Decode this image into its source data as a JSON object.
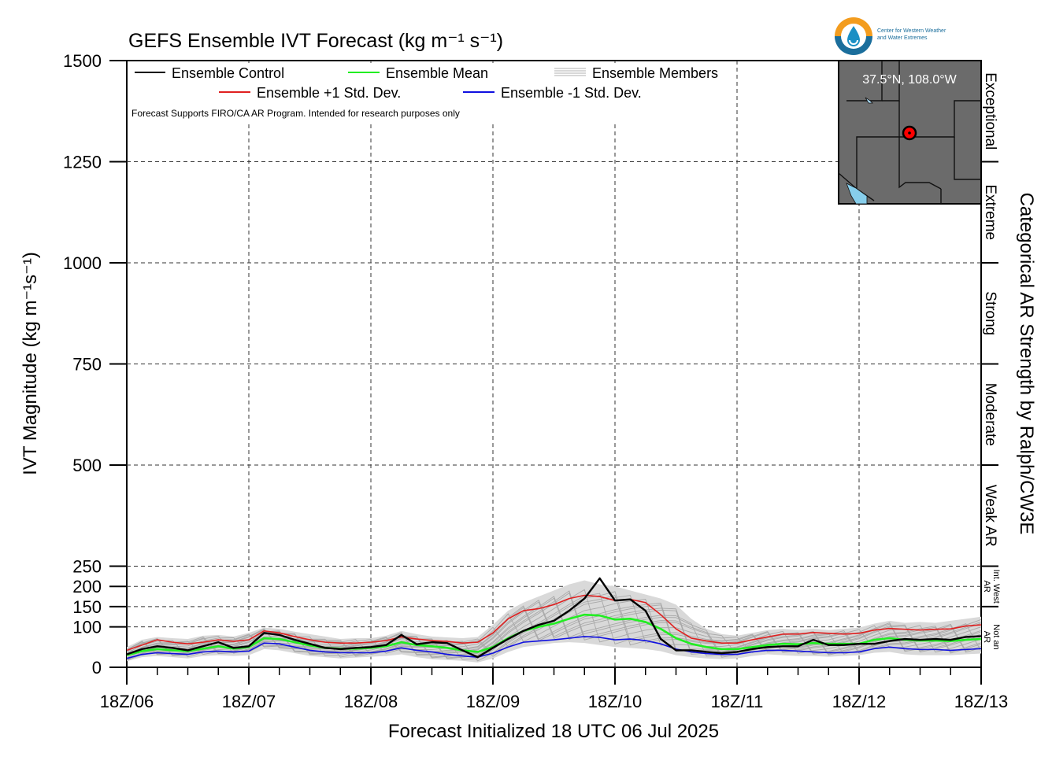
{
  "logo": {
    "text_line1": "Center for Western Weather",
    "text_line2": "and Water Extremes"
  },
  "chart_data": {
    "type": "line",
    "title": "GEFS Ensemble IVT Forecast (kg m⁻¹ s⁻¹)",
    "xlabel": "Forecast Initialized 18 UTC 06 Jul 2025",
    "ylabel": "IVT Magnitude (kg m⁻¹s⁻¹)",
    "right_label": "Categorical AR Strength by Ralph/CW3E",
    "note": "Forecast Supports FIRO/CA AR Program. Intended for research purposes only",
    "xlim": [
      0,
      168
    ],
    "ylim": [
      0,
      1500
    ],
    "x_ticks": [
      {
        "x": 0,
        "label": "18Z/06"
      },
      {
        "x": 24,
        "label": "18Z/07"
      },
      {
        "x": 48,
        "label": "18Z/08"
      },
      {
        "x": 72,
        "label": "18Z/09"
      },
      {
        "x": 96,
        "label": "18Z/10"
      },
      {
        "x": 120,
        "label": "18Z/11"
      },
      {
        "x": 144,
        "label": "18Z/12"
      },
      {
        "x": 168,
        "label": "18Z/13"
      }
    ],
    "y_ticks": [
      0,
      100,
      150,
      200,
      250,
      500,
      750,
      1000,
      1250,
      1500
    ],
    "grid": true,
    "categories": [
      {
        "label": "Not an AR",
        "lines": [
          "Not an",
          "AR"
        ],
        "range": [
          0,
          150
        ],
        "small": true
      },
      {
        "label": "Int. West AR",
        "lines": [
          "Int. West",
          "AR"
        ],
        "range": [
          150,
          250
        ],
        "small": true
      },
      {
        "label": "Weak AR",
        "range": [
          250,
          500
        ]
      },
      {
        "label": "Moderate",
        "range": [
          500,
          750
        ]
      },
      {
        "label": "Strong",
        "range": [
          750,
          1000
        ]
      },
      {
        "label": "Extreme",
        "range": [
          1000,
          1250
        ]
      },
      {
        "label": "Exceptional",
        "range": [
          1250,
          1500
        ]
      }
    ],
    "legend": [
      {
        "name": "Ensemble Control",
        "color": "#000000"
      },
      {
        "name": "Ensemble Mean",
        "color": "#22ee22"
      },
      {
        "name": "Ensemble Members",
        "color": "#b0b0b0"
      },
      {
        "name": "Ensemble +1 Std. Dev.",
        "color": "#e02020"
      },
      {
        "name": "Ensemble -1 Std. Dev.",
        "color": "#1010e0"
      }
    ],
    "x": [
      0,
      3,
      6,
      9,
      12,
      15,
      18,
      21,
      24,
      27,
      30,
      33,
      36,
      39,
      42,
      45,
      48,
      51,
      54,
      57,
      60,
      63,
      66,
      69,
      72,
      75,
      78,
      81,
      84,
      87,
      90,
      93,
      96,
      99,
      102,
      105,
      108,
      111,
      114,
      117,
      120,
      123,
      126,
      129,
      132,
      135,
      138,
      141,
      144,
      147,
      150,
      153,
      156,
      159,
      162,
      165,
      168
    ],
    "series": [
      {
        "name": "Ensemble Members",
        "color": "#b0b0b0",
        "band": true,
        "upper": [
          50,
          68,
          75,
          72,
          70,
          78,
          80,
          76,
          85,
          98,
          95,
          88,
          82,
          76,
          70,
          72,
          72,
          78,
          90,
          82,
          76,
          74,
          72,
          75,
          105,
          140,
          160,
          175,
          190,
          205,
          215,
          205,
          200,
          190,
          180,
          170,
          155,
          120,
          95,
          82,
          78,
          85,
          92,
          95,
          92,
          95,
          92,
          95,
          98,
          108,
          115,
          110,
          112,
          110,
          115,
          120,
          125
        ],
        "lower": [
          15,
          25,
          28,
          25,
          22,
          28,
          30,
          28,
          30,
          45,
          42,
          35,
          28,
          25,
          22,
          24,
          26,
          28,
          32,
          25,
          20,
          18,
          16,
          12,
          22,
          38,
          50,
          55,
          60,
          62,
          60,
          55,
          50,
          48,
          45,
          40,
          30,
          25,
          22,
          20,
          22,
          28,
          32,
          30,
          28,
          28,
          26,
          28,
          30,
          36,
          38,
          32,
          30,
          30,
          30,
          32,
          34
        ]
      },
      {
        "name": "Ensemble Control",
        "color": "#000000",
        "values": [
          32,
          45,
          52,
          48,
          42,
          52,
          62,
          48,
          52,
          85,
          80,
          68,
          58,
          48,
          45,
          48,
          50,
          55,
          80,
          57,
          62,
          60,
          42,
          25,
          48,
          70,
          90,
          105,
          115,
          140,
          170,
          220,
          165,
          168,
          140,
          70,
          42,
          42,
          38,
          35,
          38,
          45,
          50,
          52,
          52,
          68,
          55,
          55,
          58,
          58,
          65,
          70,
          68,
          70,
          68,
          75,
          77
        ]
      },
      {
        "name": "Ensemble Mean",
        "color": "#22ee22",
        "values": [
          30,
          40,
          45,
          42,
          40,
          46,
          52,
          46,
          50,
          72,
          70,
          62,
          54,
          48,
          46,
          46,
          48,
          52,
          62,
          55,
          52,
          48,
          42,
          38,
          50,
          72,
          90,
          100,
          108,
          120,
          130,
          128,
          118,
          120,
          112,
          95,
          72,
          58,
          50,
          45,
          45,
          50,
          55,
          58,
          57,
          60,
          58,
          58,
          58,
          68,
          72,
          68,
          66,
          66,
          65,
          68,
          70
        ]
      },
      {
        "name": "Ensemble +1 Std. Dev.",
        "color": "#e02020",
        "values": [
          42,
          55,
          68,
          62,
          58,
          62,
          68,
          64,
          68,
          90,
          85,
          76,
          68,
          62,
          60,
          60,
          62,
          66,
          75,
          70,
          66,
          64,
          60,
          62,
          85,
          120,
          140,
          145,
          155,
          170,
          178,
          175,
          165,
          168,
          160,
          130,
          95,
          72,
          65,
          60,
          60,
          68,
          75,
          82,
          82,
          86,
          84,
          82,
          84,
          92,
          96,
          94,
          92,
          94,
          95,
          102,
          105
        ]
      },
      {
        "name": "Ensemble -1 Std. Dev.",
        "color": "#1010e0",
        "values": [
          22,
          32,
          36,
          34,
          32,
          38,
          40,
          38,
          40,
          60,
          58,
          50,
          42,
          38,
          36,
          36,
          36,
          40,
          48,
          42,
          38,
          32,
          28,
          25,
          35,
          50,
          62,
          65,
          68,
          72,
          76,
          74,
          68,
          70,
          66,
          58,
          45,
          38,
          34,
          32,
          32,
          38,
          42,
          42,
          40,
          38,
          36,
          36,
          38,
          46,
          50,
          46,
          44,
          44,
          42,
          44,
          46
        ]
      }
    ]
  }
}
